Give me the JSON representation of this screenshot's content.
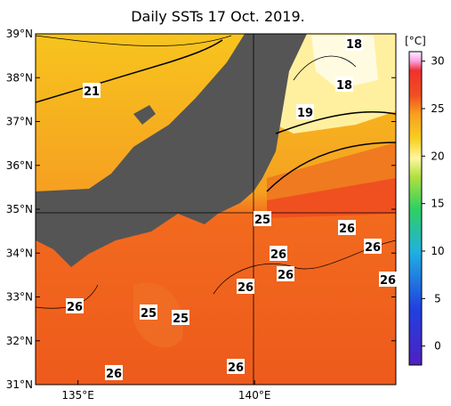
{
  "title": "Daily SSTs 17 Oct. 2019.",
  "map": {
    "lat_range": [
      31,
      39
    ],
    "lon_range": [
      133.8,
      144
    ],
    "lat_ticks": [
      {
        "value": 39,
        "label": "39°N"
      },
      {
        "value": 38,
        "label": "38°N"
      },
      {
        "value": 37,
        "label": "37°N"
      },
      {
        "value": 36,
        "label": "36°N"
      },
      {
        "value": 35,
        "label": "35°N"
      },
      {
        "value": 34,
        "label": "34°N"
      },
      {
        "value": 33,
        "label": "33°N"
      },
      {
        "value": 32,
        "label": "32°N"
      },
      {
        "value": 31,
        "label": "31°N"
      }
    ],
    "lon_ticks": [
      {
        "value": 135,
        "label": "135°E"
      },
      {
        "value": 140,
        "label": "140°E"
      }
    ],
    "contour_labels": [
      18,
      18,
      19,
      21,
      25,
      26,
      26,
      26,
      26,
      26,
      26,
      26,
      25,
      25,
      26,
      26
    ]
  },
  "colorbar": {
    "unit": "[°C]",
    "range": [
      -2,
      31
    ],
    "ticks": [
      0,
      5,
      10,
      15,
      20,
      25,
      30
    ]
  }
}
